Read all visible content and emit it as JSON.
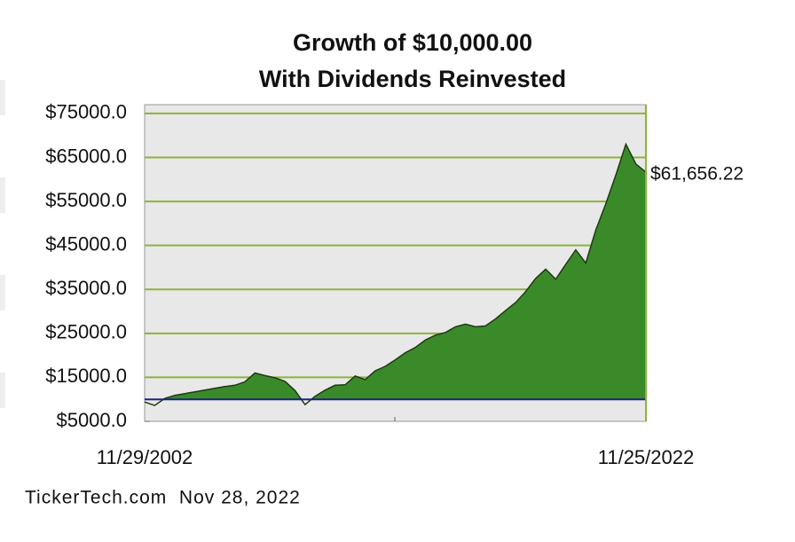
{
  "chart_data": {
    "type": "area",
    "title": "Growth of $10,000.00",
    "subtitle": "With Dividends Reinvested",
    "footer": "TickerTech.com  Nov 28, 2022",
    "categories": [
      "11/29/2002",
      null,
      null,
      null,
      null,
      null,
      null,
      null,
      null,
      null,
      null,
      null,
      null,
      null,
      null,
      null,
      null,
      null,
      null,
      null,
      null,
      null,
      null,
      null,
      null,
      null,
      null,
      null,
      null,
      null,
      null,
      null,
      null,
      null,
      null,
      null,
      null,
      null,
      null,
      null,
      null,
      null,
      null,
      null,
      null,
      null,
      null,
      null,
      null,
      null,
      "11/25/2022"
    ],
    "values": [
      9400,
      8600,
      10200,
      10900,
      11300,
      11700,
      12100,
      12500,
      12900,
      13200,
      14000,
      16000,
      15400,
      14900,
      14100,
      12000,
      8800,
      10700,
      12100,
      13200,
      13300,
      15300,
      14500,
      16500,
      17500,
      19000,
      20600,
      21800,
      23500,
      24600,
      25200,
      26500,
      27100,
      26500,
      26700,
      28300,
      30200,
      32000,
      34500,
      37500,
      39600,
      37300,
      40700,
      44000,
      41000,
      48500,
      54500,
      61000,
      68000,
      63500,
      61656.22
    ],
    "value_labels": [
      null,
      null,
      null,
      null,
      null,
      null,
      null,
      null,
      null,
      null,
      null,
      null,
      null,
      null,
      null,
      null,
      null,
      null,
      null,
      null,
      null,
      null,
      null,
      null,
      null,
      null,
      null,
      null,
      null,
      null,
      null,
      null,
      null,
      null,
      null,
      null,
      null,
      null,
      null,
      null,
      null,
      null,
      null,
      null,
      null,
      null,
      null,
      null,
      null,
      null,
      "$61,656.22"
    ],
    "color": "#3a8a2a",
    "line_color": "#1f3a12",
    "reference_line": {
      "value": 10000,
      "color": "#1a237e"
    },
    "ylim": [
      5000,
      77000
    ],
    "yticks": [
      {
        "value": 5000,
        "label": "$5000.0"
      },
      {
        "value": 15000,
        "label": "$15000.0"
      },
      {
        "value": 25000,
        "label": "$25000.0"
      },
      {
        "value": 35000,
        "label": "$35000.0"
      },
      {
        "value": 45000,
        "label": "$45000.0"
      },
      {
        "value": 55000,
        "label": "$55000.0"
      },
      {
        "value": 65000,
        "label": "$65000.0"
      },
      {
        "value": 75000,
        "label": "$75000.0"
      }
    ],
    "grid": true,
    "grid_color": "#8db33a"
  }
}
